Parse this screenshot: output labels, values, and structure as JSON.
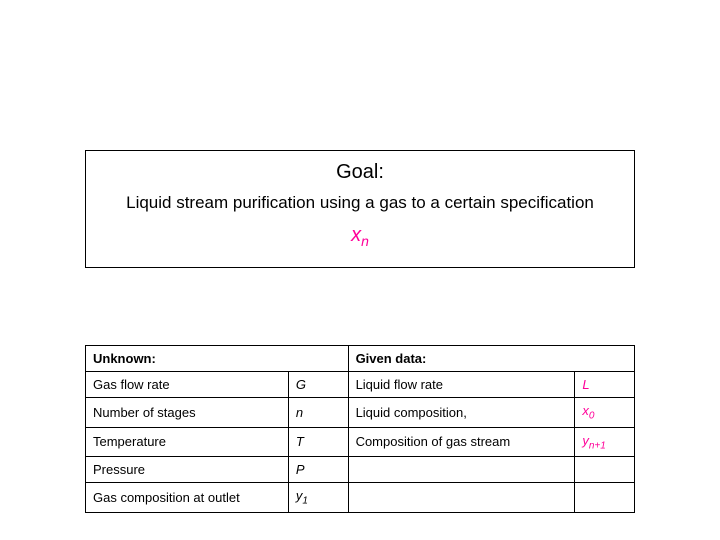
{
  "goal": {
    "title": "Goal:",
    "description": "Liquid stream purification using a gas to a certain specification",
    "var_base": "x",
    "var_sub": "n",
    "var_color": "#ff0099"
  },
  "table": {
    "unknown_header": "Unknown:",
    "given_header": "Given data:",
    "unknown_rows": [
      {
        "label": "Gas flow rate",
        "sym": "G"
      },
      {
        "label": "Number of stages",
        "sym": "n"
      },
      {
        "label": "Temperature",
        "sym": "T"
      },
      {
        "label": "Pressure",
        "sym": "P"
      },
      {
        "label": "Gas composition at outlet",
        "sym_base": "y",
        "sym_sub": "1"
      }
    ],
    "given_rows": [
      {
        "label": "Liquid flow rate",
        "sym": "L"
      },
      {
        "label": "Liquid composition,",
        "sym_base": "x",
        "sym_sub": "0"
      },
      {
        "label": "Composition of gas stream",
        "sym_base": "y",
        "sym_sub": "n+1"
      }
    ],
    "sym_color_given": "#ff0099"
  },
  "colors": {
    "text": "#000000",
    "background": "#ffffff",
    "accent": "#ff0099",
    "border": "#000000"
  },
  "fonts": {
    "family": "Arial",
    "goal_title_size": 20,
    "goal_desc_size": 17,
    "table_size": 13
  }
}
